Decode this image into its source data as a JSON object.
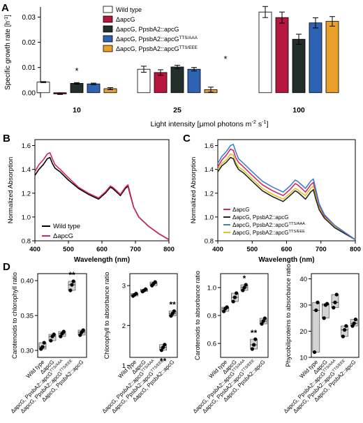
{
  "colors": {
    "wt": "#ffffff",
    "apcG": "#b5173f",
    "ttsapcG": "#233029",
    "aaa": "#2e62b3",
    "eee": "#e9a02b",
    "line_wt": "#000000",
    "line_apcG": "#d6246a",
    "line_comp": "#1f2a24",
    "line_aaa": "#3f7fd0",
    "line_eee": "#e8c125",
    "box": "#d3d3d3"
  },
  "chart_data": [
    {
      "panel": "A",
      "type": "bar",
      "ylabel": "Specific growth rate [h",
      "ylabel_sup": "-1",
      "ylabel_end": "]",
      "xlabel": "Light intensity [μmol photons m",
      "xlabel_sup1": "-2",
      "xlabel_mid": " s",
      "xlabel_sup2": "-1",
      "xlabel_end": "]",
      "ylim": [
        -0.002,
        0.034
      ],
      "yticks": [
        "0.00",
        "0.01",
        "0.02",
        "0.03"
      ],
      "categories": [
        "10",
        "25",
        "100"
      ],
      "legend": [
        {
          "key": "wt",
          "name": "Wild type",
          "sup": ""
        },
        {
          "key": "apcG",
          "name": "ΔapcG",
          "sup": ""
        },
        {
          "key": "ttsapcG",
          "name": "ΔapcG, PpsbA2::apcG",
          "sup": ""
        },
        {
          "key": "aaa",
          "name": "ΔapcG, PpsbA2::apcG",
          "sup": "TTS/AAA"
        },
        {
          "key": "eee",
          "name": "ΔapcG, PpsbA2::apcG",
          "sup": "TTS/EEE"
        }
      ],
      "series": [
        {
          "key": "wt",
          "values": [
            0.0042,
            0.0093,
            0.032
          ],
          "errors": [
            0.0002,
            0.0012,
            0.0022
          ]
        },
        {
          "key": "apcG",
          "values": [
            -0.0005,
            0.008,
            0.0298
          ],
          "errors": [
            0.0002,
            0.0011,
            0.0022
          ]
        },
        {
          "key": "ttsapcG",
          "values": [
            0.0037,
            0.0102,
            0.0212
          ],
          "errors": [
            0.0003,
            0.0007,
            0.002
          ]
        },
        {
          "key": "aaa",
          "values": [
            0.0035,
            0.0093,
            0.0277
          ],
          "errors": [
            0.0003,
            0.0007,
            0.002
          ]
        },
        {
          "key": "eee",
          "values": [
            0.0016,
            0.0012,
            0.0283
          ],
          "errors": [
            0.0004,
            0.001,
            0.0019
          ]
        }
      ],
      "stars": [
        "*",
        "*"
      ]
    },
    {
      "panel": "B",
      "type": "line",
      "ylabel": "Normalized Absorption",
      "xlabel": "Wavelength (nm)",
      "xlim": [
        400,
        800
      ],
      "ylim": [
        0.8,
        1.65
      ],
      "xticks": [
        400,
        500,
        600,
        700,
        800
      ],
      "yticks": [
        "0.8",
        "1.0",
        "1.2",
        "1.4",
        "1.6"
      ],
      "series": [
        {
          "key": "line_wt",
          "name": "Wild type",
          "sup": "",
          "x": [
            400,
            412,
            425,
            437,
            445,
            452,
            460,
            475,
            500,
            530,
            560,
            590,
            610,
            625,
            632,
            640,
            655,
            670,
            678,
            685,
            695,
            710,
            740,
            770,
            800
          ],
          "y": [
            1.35,
            1.4,
            1.44,
            1.49,
            1.5,
            1.45,
            1.41,
            1.38,
            1.31,
            1.24,
            1.19,
            1.15,
            1.2,
            1.25,
            1.24,
            1.22,
            1.18,
            1.24,
            1.26,
            1.18,
            1.08,
            1.0,
            0.92,
            0.86,
            0.81
          ]
        },
        {
          "key": "line_apcG",
          "name": "ΔapcG",
          "sup": "",
          "x": [
            400,
            412,
            425,
            437,
            445,
            452,
            460,
            475,
            500,
            530,
            560,
            590,
            610,
            625,
            632,
            640,
            655,
            670,
            678,
            685,
            695,
            710,
            740,
            770,
            800
          ],
          "y": [
            1.38,
            1.44,
            1.48,
            1.53,
            1.54,
            1.49,
            1.44,
            1.4,
            1.33,
            1.25,
            1.2,
            1.16,
            1.21,
            1.26,
            1.25,
            1.23,
            1.19,
            1.25,
            1.27,
            1.19,
            1.08,
            1.0,
            0.92,
            0.86,
            0.81
          ]
        }
      ]
    },
    {
      "panel": "C",
      "type": "line",
      "ylabel": "Normalized Absorption",
      "xlabel": "Wavelength (nm)",
      "xlim": [
        400,
        800
      ],
      "ylim": [
        0.8,
        1.65
      ],
      "xticks": [
        400,
        500,
        600,
        700,
        800
      ],
      "yticks": [
        "0.8",
        "1.0",
        "1.2",
        "1.4",
        "1.6"
      ],
      "series": [
        {
          "key": "line_eee",
          "name": "ΔapcG, PpsbA2::apcG",
          "sup": "TTS/EEE",
          "x": [
            400,
            412,
            425,
            437,
            445,
            452,
            460,
            475,
            500,
            530,
            560,
            590,
            610,
            625,
            632,
            640,
            655,
            670,
            678,
            685,
            695,
            710,
            740,
            770,
            800
          ],
          "y": [
            1.4,
            1.45,
            1.48,
            1.53,
            1.52,
            1.46,
            1.42,
            1.39,
            1.32,
            1.24,
            1.19,
            1.15,
            1.2,
            1.24,
            1.23,
            1.21,
            1.18,
            1.24,
            1.26,
            1.18,
            1.08,
            1.0,
            0.92,
            0.86,
            0.81
          ]
        },
        {
          "key": "line_comp",
          "name": "ΔapcG, PpsbA2::apcG",
          "sup": "",
          "x": [
            400,
            412,
            425,
            437,
            445,
            452,
            460,
            475,
            500,
            530,
            560,
            590,
            610,
            625,
            632,
            640,
            655,
            670,
            678,
            685,
            695,
            710,
            740,
            770,
            800
          ],
          "y": [
            1.38,
            1.43,
            1.46,
            1.5,
            1.49,
            1.44,
            1.4,
            1.37,
            1.3,
            1.22,
            1.17,
            1.13,
            1.18,
            1.22,
            1.21,
            1.19,
            1.15,
            1.21,
            1.23,
            1.15,
            1.06,
            0.99,
            0.91,
            0.86,
            0.81
          ]
        },
        {
          "key": "line_apcG",
          "name": "ΔapcG",
          "sup": "",
          "x": [
            400,
            412,
            425,
            437,
            445,
            452,
            460,
            475,
            500,
            530,
            560,
            590,
            610,
            625,
            632,
            640,
            655,
            670,
            678,
            685,
            695,
            710,
            740,
            770,
            800
          ],
          "y": [
            1.42,
            1.48,
            1.52,
            1.57,
            1.56,
            1.5,
            1.46,
            1.42,
            1.35,
            1.27,
            1.22,
            1.18,
            1.23,
            1.28,
            1.27,
            1.25,
            1.21,
            1.27,
            1.29,
            1.21,
            1.1,
            1.01,
            0.93,
            0.87,
            0.81
          ]
        },
        {
          "key": "line_aaa",
          "name": "ΔapcG, PpsbA2::apcG",
          "sup": "TTS/AAA",
          "x": [
            400,
            412,
            425,
            437,
            445,
            452,
            460,
            475,
            500,
            530,
            560,
            590,
            610,
            625,
            632,
            640,
            655,
            670,
            678,
            685,
            695,
            710,
            740,
            770,
            800
          ],
          "y": [
            1.45,
            1.51,
            1.55,
            1.6,
            1.61,
            1.55,
            1.49,
            1.45,
            1.38,
            1.3,
            1.25,
            1.21,
            1.26,
            1.31,
            1.3,
            1.28,
            1.24,
            1.3,
            1.32,
            1.23,
            1.11,
            1.02,
            0.93,
            0.87,
            0.81
          ]
        }
      ]
    },
    {
      "panel": "D",
      "type": "box",
      "ylabel": "Carotenoids to chlorophyll ratio",
      "ylim": [
        0.29,
        0.41
      ],
      "yticks": [
        "0.30",
        "0.35",
        "0.40"
      ],
      "categories": [
        {
          "name": "Wild type",
          "sup": ""
        },
        {
          "name": "ΔapcG",
          "sup": ""
        },
        {
          "name": "ΔapcG, PpsbA2::apcG",
          "sup": "TTS/AAA"
        },
        {
          "name": "ΔapcG, PpsbA2::apcG",
          "sup": "TTS/EEE"
        },
        {
          "name": "ΔapcG, PpsbA2::apcG",
          "sup": ""
        }
      ],
      "points": [
        [
          0.302,
          0.305,
          0.311
        ],
        [
          0.314,
          0.32,
          0.323
        ],
        [
          0.32,
          0.324,
          0.327
        ],
        [
          0.386,
          0.394,
          0.399
        ],
        [
          0.322,
          0.326,
          0.329
        ]
      ],
      "stars": [
        "",
        "",
        "",
        "**",
        ""
      ]
    },
    {
      "panel": "D",
      "type": "box",
      "ylabel": "Chlorophyll to absorbance ratio",
      "ylim": [
        1.2,
        3.3
      ],
      "yticks": [
        "1",
        "2",
        "3"
      ],
      "categories": [
        {
          "name": "Wild type",
          "sup": ""
        },
        {
          "name": "ΔapcG",
          "sup": ""
        },
        {
          "name": "ΔapcG, PpsbA2::apcG",
          "sup": "TTS/AAA"
        },
        {
          "name": "ΔapcG, PpsbA2::apcG",
          "sup": "TTS/EEE"
        },
        {
          "name": "ΔapcG, PpsbA2::apcG",
          "sup": ""
        }
      ],
      "points": [
        [
          2.74,
          2.77,
          2.8
        ],
        [
          2.85,
          2.88,
          2.91
        ],
        [
          3.0,
          3.05,
          3.09
        ],
        [
          1.38,
          1.45,
          1.52
        ],
        [
          2.24,
          2.3,
          2.36
        ]
      ],
      "stars": [
        "",
        "",
        "",
        "**",
        "**"
      ]
    },
    {
      "panel": "D",
      "type": "box",
      "ylabel": "Carotenoids to absorbance ratio",
      "ylim": [
        0.5,
        1.1
      ],
      "yticks": [
        "0.6",
        "0.8",
        "1.0"
      ],
      "categories": [
        {
          "name": "Wild type",
          "sup": ""
        },
        {
          "name": "ΔapcG",
          "sup": ""
        },
        {
          "name": "ΔapcG, PpsbA2::apcG",
          "sup": "TTS/AAA"
        },
        {
          "name": "ΔapcG, PpsbA2::apcG",
          "sup": "TTS/EEE"
        },
        {
          "name": "ΔapcG, PpsbA2::apcG",
          "sup": ""
        }
      ],
      "points": [
        [
          0.83,
          0.85,
          0.86
        ],
        [
          0.9,
          0.93,
          0.96
        ],
        [
          0.98,
          1.0,
          1.02
        ],
        [
          0.56,
          0.59,
          0.63
        ],
        [
          0.74,
          0.76,
          0.78
        ]
      ],
      "stars": [
        "",
        "",
        "*",
        "**",
        ""
      ]
    },
    {
      "panel": "D",
      "type": "box",
      "ylabel": "Phycobiliproteins to absorbance ratio",
      "ylim": [
        10,
        42
      ],
      "yticks": [
        "10",
        "20",
        "30",
        "40"
      ],
      "categories": [
        {
          "name": "Wild type",
          "sup": ""
        },
        {
          "name": "ΔapcG",
          "sup": ""
        },
        {
          "name": "ΔapcG, PpsbA2::apcG",
          "sup": "TTS/AAA"
        },
        {
          "name": "ΔapcG, PpsbA2::apcG",
          "sup": "TTS/EEE"
        },
        {
          "name": "ΔapcG, PpsbA2::apcG",
          "sup": ""
        }
      ],
      "points": [
        [
          12,
          28,
          31
        ],
        [
          25,
          30,
          30.5
        ],
        [
          29,
          31,
          34
        ],
        [
          18,
          20.5,
          22
        ],
        [
          22,
          23,
          24.5
        ]
      ],
      "stars": [
        "",
        "",
        "",
        "",
        ""
      ]
    }
  ],
  "panel_labels": [
    "A",
    "B",
    "C",
    "D"
  ]
}
